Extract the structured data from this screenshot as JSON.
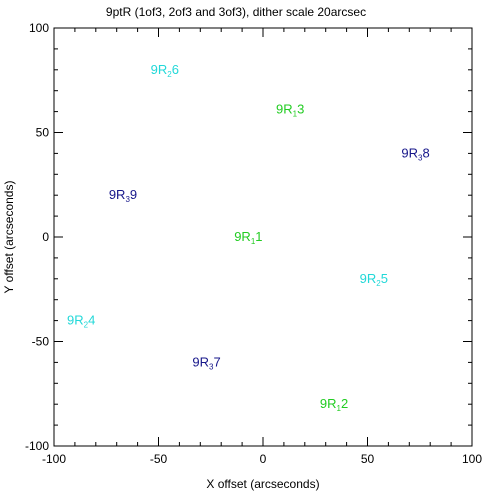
{
  "chart_data": {
    "type": "scatter",
    "title": "9ptR (1of3, 2of3 and 3of3), dither scale 20arcsec",
    "xlabel": "X offset (arcseconds)",
    "ylabel": "Y offset (arcseconds)",
    "xlim": [
      -100,
      100
    ],
    "ylim": [
      -100,
      100
    ],
    "x_ticks": [
      "-100",
      "-50",
      "0",
      "50",
      "100"
    ],
    "y_ticks": [
      "-100",
      "-50",
      "0",
      "50",
      "100"
    ],
    "grid": false,
    "colors": {
      "R1": "#22cc22",
      "R2": "#22d8d8",
      "R3": "#16168a"
    },
    "points": [
      {
        "prefix": "9R",
        "sub": "1",
        "suffix": "1",
        "x": -7,
        "y": 0,
        "group": "R1"
      },
      {
        "prefix": "9R",
        "sub": "1",
        "suffix": "2",
        "x": 34,
        "y": -80,
        "group": "R1"
      },
      {
        "prefix": "9R",
        "sub": "1",
        "suffix": "3",
        "x": 13,
        "y": 61,
        "group": "R1"
      },
      {
        "prefix": "9R",
        "sub": "2",
        "suffix": "4",
        "x": -87,
        "y": -40,
        "group": "R2"
      },
      {
        "prefix": "9R",
        "sub": "2",
        "suffix": "5",
        "x": 53,
        "y": -20,
        "group": "R2"
      },
      {
        "prefix": "9R",
        "sub": "2",
        "suffix": "6",
        "x": -47,
        "y": 80,
        "group": "R2"
      },
      {
        "prefix": "9R",
        "sub": "3",
        "suffix": "7",
        "x": -27,
        "y": -60,
        "group": "R3"
      },
      {
        "prefix": "9R",
        "sub": "3",
        "suffix": "8",
        "x": 73,
        "y": 40,
        "group": "R3"
      },
      {
        "prefix": "9R",
        "sub": "3",
        "suffix": "9",
        "x": -67,
        "y": 20,
        "group": "R3"
      }
    ]
  }
}
